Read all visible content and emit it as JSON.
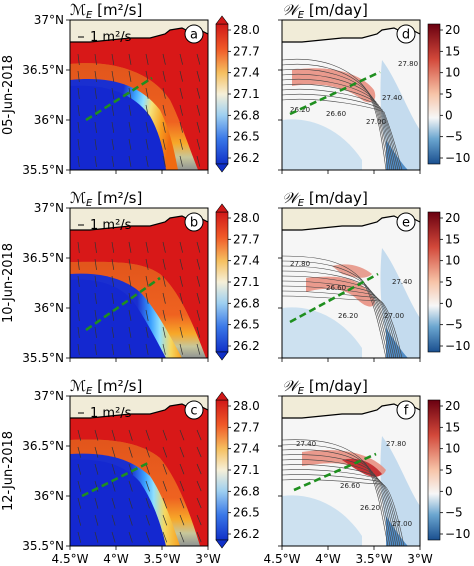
{
  "figure": {
    "left_title_var": "ℳ",
    "left_title_sub": "E",
    "left_title_units": "[m²/s]",
    "right_title_var": "𝒲",
    "right_title_sub": "E",
    "right_title_units": "[m/day]",
    "scale_label": "1 m²/s"
  },
  "colors": {
    "land": "#f1ecd8",
    "dashed_line": "#1f8f1f",
    "contour": "#444444",
    "coast": "#000000"
  },
  "chart_data": [
    {
      "type": "heatmap",
      "row": 0,
      "column": 0,
      "panel_letter": "a",
      "date_label": "05-Jun-2018",
      "variable": "M_E",
      "colormap": "blue-white-red (diverging)",
      "colorbar_ticks": [
        "28.0",
        "27.7",
        "27.4",
        "27.1",
        "26.8",
        "26.5",
        "26.2"
      ],
      "colorbar_range": [
        26.2,
        28.2
      ],
      "colorbar_extend": "both",
      "ytick_labels": [
        "37°N",
        "36.5°N",
        "36°N",
        "35.5°N"
      ],
      "xtick_labels": []
    },
    {
      "type": "heatmap",
      "row": 0,
      "column": 1,
      "panel_letter": "d",
      "variable": "W_E",
      "colormap": "blue-white-red (diverging)",
      "colorbar_ticks": [
        "20",
        "15",
        "10",
        "5",
        "0",
        "−5",
        "−10"
      ],
      "colorbar_range": [
        -10,
        20
      ],
      "contour_labels": [
        "26.20",
        "26.60",
        "27.00",
        "27.40",
        "27.80"
      ],
      "xtick_labels": []
    },
    {
      "type": "heatmap",
      "row": 1,
      "column": 0,
      "panel_letter": "b",
      "date_label": "10-Jun-2018",
      "variable": "M_E",
      "colorbar_ticks": [
        "28.0",
        "27.7",
        "27.4",
        "27.1",
        "26.8",
        "26.5",
        "26.2"
      ],
      "colorbar_range": [
        26.2,
        28.2
      ],
      "colorbar_extend": "both",
      "ytick_labels": [
        "37°N",
        "36.5°N",
        "36°N",
        "35.5°N"
      ],
      "xtick_labels": []
    },
    {
      "type": "heatmap",
      "row": 1,
      "column": 1,
      "panel_letter": "e",
      "variable": "W_E",
      "colorbar_ticks": [
        "20",
        "15",
        "10",
        "5",
        "0",
        "−5",
        "−10"
      ],
      "colorbar_range": [
        -10,
        20
      ],
      "contour_labels": [
        "27.80",
        "26.60",
        "26.20",
        "27.00",
        "27.40"
      ],
      "xtick_labels": []
    },
    {
      "type": "heatmap",
      "row": 2,
      "column": 0,
      "panel_letter": "c",
      "date_label": "12-Jun-2018",
      "variable": "M_E",
      "colorbar_ticks": [
        "28.0",
        "27.7",
        "27.4",
        "27.1",
        "26.8",
        "26.5",
        "26.2"
      ],
      "colorbar_range": [
        26.2,
        28.2
      ],
      "colorbar_extend": "both",
      "ytick_labels": [
        "37°N",
        "36.5°N",
        "36°N",
        "35.5°N"
      ],
      "xtick_labels": [
        "4.5°W",
        "4°W",
        "3.5°W",
        "3°W"
      ]
    },
    {
      "type": "heatmap",
      "row": 2,
      "column": 1,
      "panel_letter": "f",
      "variable": "W_E",
      "colorbar_ticks": [
        "20",
        "15",
        "10",
        "5",
        "0",
        "−5",
        "−10"
      ],
      "colorbar_range": [
        -10,
        20
      ],
      "contour_labels": [
        "27.40",
        "27.80",
        "26.60",
        "26.20",
        "27.00"
      ],
      "xtick_labels": [
        "4.5°W",
        "4°W",
        "3.5°W",
        "3°W"
      ]
    }
  ]
}
